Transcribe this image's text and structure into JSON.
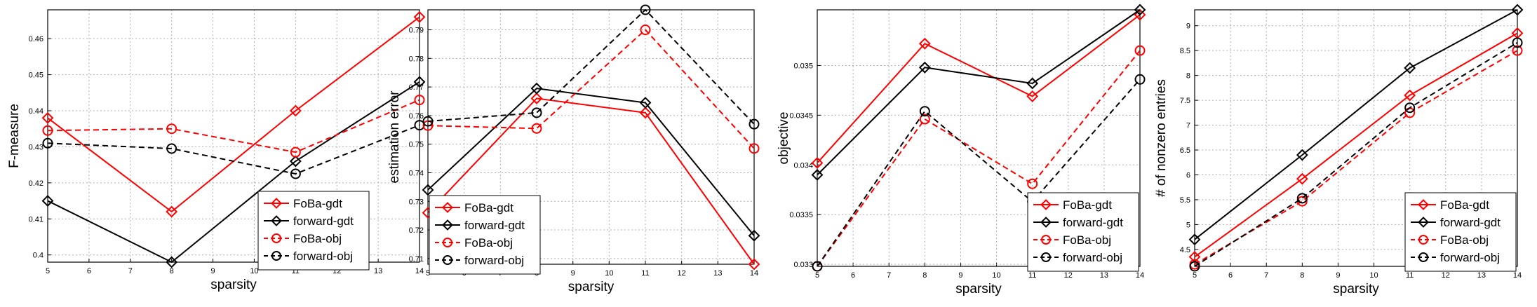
{
  "chart_data": [
    {
      "type": "line",
      "xlabel": "sparsity",
      "ylabel": "F-measure",
      "x": [
        5,
        8,
        11,
        14
      ],
      "xticks": [
        "5",
        "6",
        "7",
        "8",
        "9",
        "10",
        "11",
        "12",
        "13",
        "14"
      ],
      "yticks": [
        "0.4",
        "0.41",
        "0.42",
        "0.43",
        "0.44",
        "0.45",
        "0.46"
      ],
      "xlim": [
        5,
        14
      ],
      "ylim": [
        0.398,
        0.468
      ],
      "grid": true,
      "legend_position": "bottom-right",
      "series": [
        {
          "name": "FoBa-gdt",
          "color": "#ff0000",
          "marker": "diamond",
          "dash": false,
          "values": [
            0.438,
            0.412,
            0.44,
            0.466
          ]
        },
        {
          "name": "forward-gdt",
          "color": "#000000",
          "marker": "diamond",
          "dash": false,
          "values": [
            0.415,
            0.398,
            0.426,
            0.448
          ]
        },
        {
          "name": "FoBa-obj",
          "color": "#ff0000",
          "marker": "circle",
          "dash": true,
          "values": [
            0.4345,
            0.435,
            0.4285,
            0.443
          ]
        },
        {
          "name": "forward-obj",
          "color": "#000000",
          "marker": "circle",
          "dash": true,
          "values": [
            0.431,
            0.4295,
            0.4225,
            0.436
          ]
        }
      ]
    },
    {
      "type": "line",
      "xlabel": "sparsity",
      "ylabel": "estimation error",
      "x": [
        5,
        8,
        11,
        14
      ],
      "xticks": [
        "5",
        "6",
        "7",
        "8",
        "9",
        "10",
        "11",
        "12",
        "13",
        "14"
      ],
      "yticks": [
        "0.71",
        "0.72",
        "0.73",
        "0.74",
        "0.75",
        "0.76",
        "0.77",
        "0.78",
        "0.79"
      ],
      "xlim": [
        5,
        14
      ],
      "ylim": [
        0.708,
        0.797
      ],
      "grid": true,
      "legend_position": "bottom-left",
      "series": [
        {
          "name": "FoBa-gdt",
          "color": "#ff0000",
          "marker": "diamond",
          "dash": false,
          "values": [
            0.726,
            0.766,
            0.761,
            0.708
          ]
        },
        {
          "name": "forward-gdt",
          "color": "#000000",
          "marker": "diamond",
          "dash": false,
          "values": [
            0.734,
            0.7695,
            0.7645,
            0.718
          ]
        },
        {
          "name": "FoBa-obj",
          "color": "#ff0000",
          "marker": "circle",
          "dash": true,
          "values": [
            0.7565,
            0.7555,
            0.79,
            0.7485
          ]
        },
        {
          "name": "forward-obj",
          "color": "#000000",
          "marker": "circle",
          "dash": true,
          "values": [
            0.758,
            0.761,
            0.797,
            0.757
          ]
        }
      ]
    },
    {
      "type": "line",
      "xlabel": "sparsity",
      "ylabel": "objective",
      "x": [
        5,
        8,
        11,
        14
      ],
      "xticks": [
        "5",
        "6",
        "7",
        "8",
        "9",
        "10",
        "11",
        "12",
        "13",
        "14"
      ],
      "yticks": [
        "0.033",
        "0.0335",
        "0.034",
        "0.0345",
        "0.035"
      ],
      "xlim": [
        5,
        14
      ],
      "ylim": [
        0.03298,
        0.03556
      ],
      "grid": true,
      "legend_position": "bottom-right",
      "series": [
        {
          "name": "FoBa-gdt",
          "color": "#ff0000",
          "marker": "diamond",
          "dash": false,
          "values": [
            0.03402,
            0.03522,
            0.03469,
            0.03551
          ]
        },
        {
          "name": "forward-gdt",
          "color": "#000000",
          "marker": "diamond",
          "dash": false,
          "values": [
            0.0339,
            0.03498,
            0.03482,
            0.03556
          ]
        },
        {
          "name": "FoBa-obj",
          "color": "#ff0000",
          "marker": "circle",
          "dash": true,
          "values": [
            0.03298,
            0.03446,
            0.03381,
            0.03515
          ]
        },
        {
          "name": "forward-obj",
          "color": "#000000",
          "marker": "circle",
          "dash": true,
          "values": [
            0.03298,
            0.03454,
            0.03363,
            0.03486
          ]
        }
      ]
    },
    {
      "type": "line",
      "xlabel": "sparsity",
      "ylabel": "# of nonzero entries",
      "x": [
        5,
        8,
        11,
        14
      ],
      "xticks": [
        "5",
        "6",
        "7",
        "8",
        "9",
        "10",
        "11",
        "12",
        "13",
        "14"
      ],
      "yticks": [
        "4.5",
        "5",
        "5.5",
        "6",
        "6.5",
        "7",
        "7.5",
        "8",
        "8.5",
        "9"
      ],
      "xlim": [
        5,
        14
      ],
      "ylim": [
        4.16,
        9.32
      ],
      "grid": true,
      "legend_position": "bottom-right",
      "series": [
        {
          "name": "FoBa-gdt",
          "color": "#ff0000",
          "marker": "diamond",
          "dash": false,
          "values": [
            4.35,
            5.92,
            7.6,
            8.85
          ]
        },
        {
          "name": "forward-gdt",
          "color": "#000000",
          "marker": "diamond",
          "dash": false,
          "values": [
            4.7,
            6.4,
            8.15,
            9.32
          ]
        },
        {
          "name": "FoBa-obj",
          "color": "#ff0000",
          "marker": "circle",
          "dash": true,
          "values": [
            4.2,
            5.47,
            7.25,
            8.5
          ]
        },
        {
          "name": "forward-obj",
          "color": "#000000",
          "marker": "circle",
          "dash": true,
          "values": [
            4.16,
            5.53,
            7.35,
            8.66
          ]
        }
      ]
    }
  ]
}
